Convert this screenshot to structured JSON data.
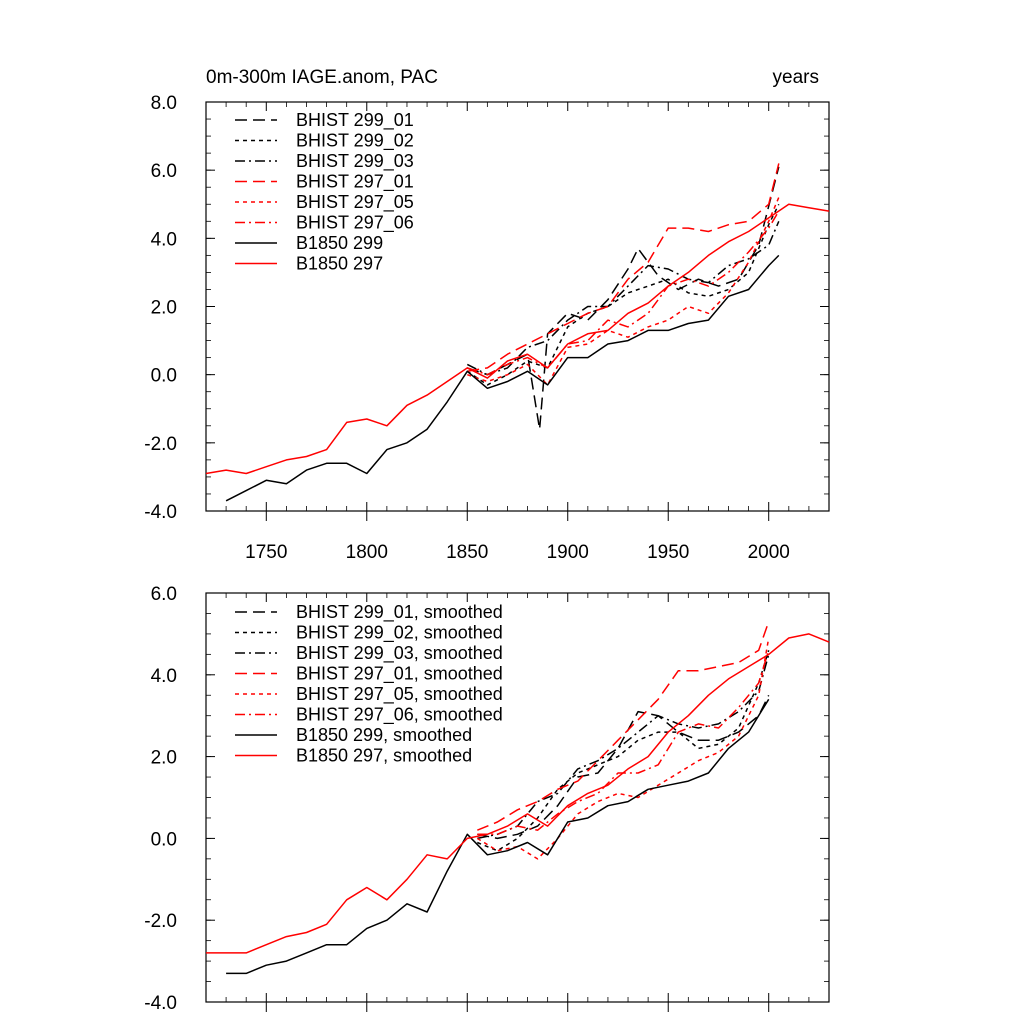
{
  "chart_data": [
    {
      "type": "line",
      "panel": "top",
      "title": "0m-300m IAGE.anom, PAC",
      "units": "years",
      "xlim": [
        1720,
        2030
      ],
      "ylim": [
        -4.0,
        8.0
      ],
      "x_ticks": [
        1750,
        1800,
        1850,
        1900,
        1950,
        2000
      ],
      "y_ticks": [
        -4.0,
        -2.0,
        0.0,
        2.0,
        4.0,
        6.0,
        8.0
      ],
      "y_tick_labels": [
        "-4.0",
        "-2.0",
        "0.0",
        "2.0",
        "4.0",
        "6.0",
        "8.0"
      ],
      "x_tick_labels": [
        "1750",
        "1800",
        "1850",
        "1900",
        "1950",
        "2000"
      ],
      "grid": false,
      "legend_position": "top-left",
      "series": [
        {
          "name": "BHIST 299_01",
          "color": "#000000",
          "dash": "long-dash",
          "x": [
            1850,
            1860,
            1870,
            1880,
            1886,
            1890,
            1900,
            1910,
            1920,
            1930,
            1935,
            1945,
            1955,
            1965,
            1975,
            1985,
            1995,
            2005
          ],
          "y": [
            0.2,
            0.0,
            0.3,
            0.6,
            -1.6,
            1.2,
            1.8,
            1.6,
            2.2,
            3.1,
            3.7,
            2.9,
            2.5,
            2.8,
            2.6,
            2.8,
            3.8,
            6.1
          ]
        },
        {
          "name": "BHIST 299_02",
          "color": "#000000",
          "dash": "short-dash",
          "x": [
            1850,
            1860,
            1870,
            1880,
            1890,
            1900,
            1910,
            1920,
            1930,
            1940,
            1950,
            1960,
            1970,
            1980,
            1990,
            2000,
            2005
          ],
          "y": [
            0.1,
            -0.3,
            0.0,
            0.4,
            0.2,
            1.4,
            1.8,
            2.0,
            2.4,
            2.6,
            2.8,
            2.4,
            2.3,
            2.5,
            3.0,
            4.4,
            5.0
          ]
        },
        {
          "name": "BHIST 299_03",
          "color": "#000000",
          "dash": "dash-dot",
          "x": [
            1850,
            1860,
            1870,
            1880,
            1890,
            1900,
            1910,
            1920,
            1930,
            1940,
            1950,
            1960,
            1970,
            1980,
            1990,
            2000,
            2005
          ],
          "y": [
            0.3,
            0.0,
            0.2,
            0.8,
            1.0,
            1.6,
            2.0,
            2.0,
            2.6,
            3.2,
            3.1,
            2.8,
            2.7,
            3.2,
            3.4,
            3.8,
            4.5
          ]
        },
        {
          "name": "BHIST 297_01",
          "color": "#ff0000",
          "dash": "long-dash",
          "x": [
            1850,
            1860,
            1870,
            1880,
            1890,
            1900,
            1910,
            1920,
            1930,
            1940,
            1950,
            1960,
            1970,
            1980,
            1990,
            2000,
            2005
          ],
          "y": [
            0.1,
            0.2,
            0.6,
            0.9,
            1.2,
            1.5,
            1.8,
            2.0,
            2.8,
            3.3,
            4.3,
            4.3,
            4.2,
            4.4,
            4.5,
            5.0,
            6.2
          ]
        },
        {
          "name": "BHIST 297_05",
          "color": "#ff0000",
          "dash": "short-dash",
          "x": [
            1850,
            1860,
            1870,
            1880,
            1890,
            1900,
            1910,
            1920,
            1930,
            1940,
            1950,
            1960,
            1970,
            1980,
            1990,
            2000,
            2005
          ],
          "y": [
            0.0,
            -0.2,
            0.0,
            0.3,
            -0.3,
            0.8,
            0.9,
            1.3,
            1.1,
            1.4,
            1.6,
            2.0,
            1.8,
            2.4,
            3.3,
            4.5,
            5.2
          ]
        },
        {
          "name": "BHIST 297_06",
          "color": "#ff0000",
          "dash": "dash-dot",
          "x": [
            1850,
            1860,
            1870,
            1880,
            1890,
            1900,
            1910,
            1920,
            1930,
            1940,
            1950,
            1960,
            1970,
            1980,
            1990,
            2000,
            2005
          ],
          "y": [
            0.2,
            0.0,
            0.3,
            0.5,
            0.2,
            0.9,
            1.0,
            1.6,
            1.4,
            1.8,
            2.6,
            2.8,
            2.6,
            3.0,
            3.6,
            4.3,
            4.8
          ]
        },
        {
          "name": "B1850 299",
          "color": "#000000",
          "dash": "solid",
          "x": [
            1730,
            1740,
            1750,
            1760,
            1770,
            1780,
            1790,
            1800,
            1810,
            1820,
            1830,
            1840,
            1850,
            1860,
            1870,
            1880,
            1890,
            1900,
            1910,
            1920,
            1930,
            1940,
            1950,
            1960,
            1970,
            1980,
            1990,
            2000,
            2005
          ],
          "y": [
            -3.7,
            -3.4,
            -3.1,
            -3.2,
            -2.8,
            -2.6,
            -2.6,
            -2.9,
            -2.2,
            -2.0,
            -1.6,
            -0.8,
            0.1,
            -0.4,
            -0.2,
            0.1,
            -0.3,
            0.5,
            0.5,
            0.9,
            1.0,
            1.3,
            1.3,
            1.5,
            1.6,
            2.3,
            2.5,
            3.2,
            3.5
          ]
        },
        {
          "name": "B1850 297",
          "color": "#ff0000",
          "dash": "solid",
          "x": [
            1720,
            1730,
            1740,
            1750,
            1760,
            1770,
            1780,
            1790,
            1800,
            1810,
            1820,
            1830,
            1840,
            1850,
            1860,
            1870,
            1880,
            1890,
            1900,
            1910,
            1920,
            1930,
            1940,
            1950,
            1960,
            1970,
            1980,
            1990,
            2000,
            2010,
            2020,
            2030
          ],
          "y": [
            -2.9,
            -2.8,
            -2.9,
            -2.7,
            -2.5,
            -2.4,
            -2.2,
            -1.4,
            -1.3,
            -1.5,
            -0.9,
            -0.6,
            -0.2,
            0.2,
            -0.1,
            0.4,
            0.6,
            0.2,
            0.9,
            1.2,
            1.3,
            1.8,
            2.1,
            2.6,
            3.0,
            3.5,
            3.9,
            4.2,
            4.6,
            5.0,
            4.9,
            4.8
          ]
        }
      ]
    },
    {
      "type": "line",
      "panel": "bottom",
      "title": "",
      "xlim": [
        1720,
        2030
      ],
      "ylim": [
        -4.0,
        6.0
      ],
      "y_ticks": [
        -4.0,
        -2.0,
        0.0,
        2.0,
        4.0,
        6.0
      ],
      "y_tick_labels": [
        "-4.0",
        "-2.0",
        "0.0",
        "2.0",
        "4.0",
        "6.0"
      ],
      "grid": false,
      "legend_position": "top-left",
      "series": [
        {
          "name": "BHIST 299_01, smoothed",
          "color": "#000000",
          "dash": "long-dash",
          "x": [
            1855,
            1865,
            1875,
            1885,
            1895,
            1905,
            1915,
            1925,
            1935,
            1945,
            1955,
            1965,
            1975,
            1985,
            1995,
            2000
          ],
          "y": [
            0.1,
            0.0,
            0.1,
            0.3,
            0.8,
            1.5,
            1.6,
            2.2,
            3.1,
            3.0,
            2.6,
            2.4,
            2.4,
            2.6,
            3.0,
            3.5
          ]
        },
        {
          "name": "BHIST 299_02, smoothed",
          "color": "#000000",
          "dash": "short-dash",
          "x": [
            1855,
            1865,
            1875,
            1885,
            1895,
            1905,
            1915,
            1925,
            1935,
            1945,
            1955,
            1965,
            1975,
            1985,
            1995,
            2000
          ],
          "y": [
            -0.1,
            -0.3,
            0.0,
            0.5,
            1.2,
            1.6,
            1.8,
            2.0,
            2.4,
            2.6,
            2.6,
            2.2,
            2.3,
            2.7,
            3.8,
            4.6
          ]
        },
        {
          "name": "BHIST 299_03, smoothed",
          "color": "#000000",
          "dash": "dash-dot",
          "x": [
            1855,
            1865,
            1875,
            1885,
            1895,
            1905,
            1915,
            1925,
            1935,
            1945,
            1955,
            1965,
            1975,
            1985,
            1995,
            2000
          ],
          "y": [
            0.0,
            0.1,
            0.3,
            0.9,
            1.1,
            1.7,
            1.9,
            2.2,
            2.6,
            3.0,
            2.8,
            2.7,
            2.8,
            3.1,
            3.6,
            4.5
          ]
        },
        {
          "name": "BHIST 297_01, smoothed",
          "color": "#ff0000",
          "dash": "long-dash",
          "x": [
            1855,
            1865,
            1875,
            1885,
            1895,
            1905,
            1915,
            1925,
            1935,
            1945,
            1955,
            1965,
            1975,
            1985,
            1995,
            2000
          ],
          "y": [
            0.2,
            0.4,
            0.7,
            0.9,
            1.2,
            1.4,
            1.9,
            2.4,
            2.9,
            3.4,
            4.1,
            4.1,
            4.2,
            4.3,
            4.6,
            5.3
          ]
        },
        {
          "name": "BHIST 297_05, smoothed",
          "color": "#ff0000",
          "dash": "short-dash",
          "x": [
            1855,
            1865,
            1875,
            1885,
            1895,
            1905,
            1915,
            1925,
            1935,
            1945,
            1955,
            1965,
            1975,
            1985,
            1995,
            2000
          ],
          "y": [
            0.0,
            -0.3,
            -0.2,
            -0.5,
            0.0,
            0.6,
            0.9,
            1.1,
            1.0,
            1.3,
            1.6,
            1.9,
            2.1,
            2.5,
            3.5,
            4.9
          ]
        },
        {
          "name": "BHIST 297_06, smoothed",
          "color": "#ff0000",
          "dash": "dash-dot",
          "x": [
            1855,
            1865,
            1875,
            1885,
            1895,
            1905,
            1915,
            1925,
            1935,
            1945,
            1955,
            1965,
            1975,
            1985,
            1995,
            2000
          ],
          "y": [
            0.1,
            0.1,
            0.3,
            0.2,
            0.6,
            0.9,
            1.1,
            1.6,
            1.6,
            1.8,
            2.6,
            2.8,
            2.7,
            3.2,
            3.8,
            4.6
          ]
        },
        {
          "name": "B1850 299, smoothed",
          "color": "#000000",
          "dash": "solid",
          "x": [
            1730,
            1740,
            1750,
            1760,
            1770,
            1780,
            1790,
            1800,
            1810,
            1820,
            1830,
            1840,
            1850,
            1860,
            1870,
            1880,
            1890,
            1900,
            1910,
            1920,
            1930,
            1940,
            1950,
            1960,
            1970,
            1980,
            1990,
            2000
          ],
          "y": [
            -3.3,
            -3.3,
            -3.1,
            -3.0,
            -2.8,
            -2.6,
            -2.6,
            -2.2,
            -2.0,
            -1.6,
            -1.8,
            -0.8,
            0.1,
            -0.4,
            -0.3,
            -0.1,
            -0.4,
            0.4,
            0.5,
            0.8,
            0.9,
            1.2,
            1.3,
            1.4,
            1.6,
            2.2,
            2.6,
            3.4
          ]
        },
        {
          "name": "B1850 297, smoothed",
          "color": "#ff0000",
          "dash": "solid",
          "x": [
            1720,
            1730,
            1740,
            1750,
            1760,
            1770,
            1780,
            1790,
            1800,
            1810,
            1820,
            1830,
            1840,
            1850,
            1860,
            1870,
            1880,
            1890,
            1900,
            1910,
            1920,
            1930,
            1940,
            1950,
            1960,
            1970,
            1980,
            1990,
            2000,
            2010,
            2020,
            2030
          ],
          "y": [
            -2.8,
            -2.8,
            -2.8,
            -2.6,
            -2.4,
            -2.3,
            -2.1,
            -1.5,
            -1.2,
            -1.5,
            -1.0,
            -0.4,
            -0.5,
            0.0,
            0.1,
            0.3,
            0.6,
            0.3,
            0.8,
            1.1,
            1.3,
            1.7,
            2.0,
            2.6,
            3.0,
            3.5,
            3.9,
            4.2,
            4.5,
            4.9,
            5.0,
            4.8
          ]
        }
      ]
    }
  ]
}
